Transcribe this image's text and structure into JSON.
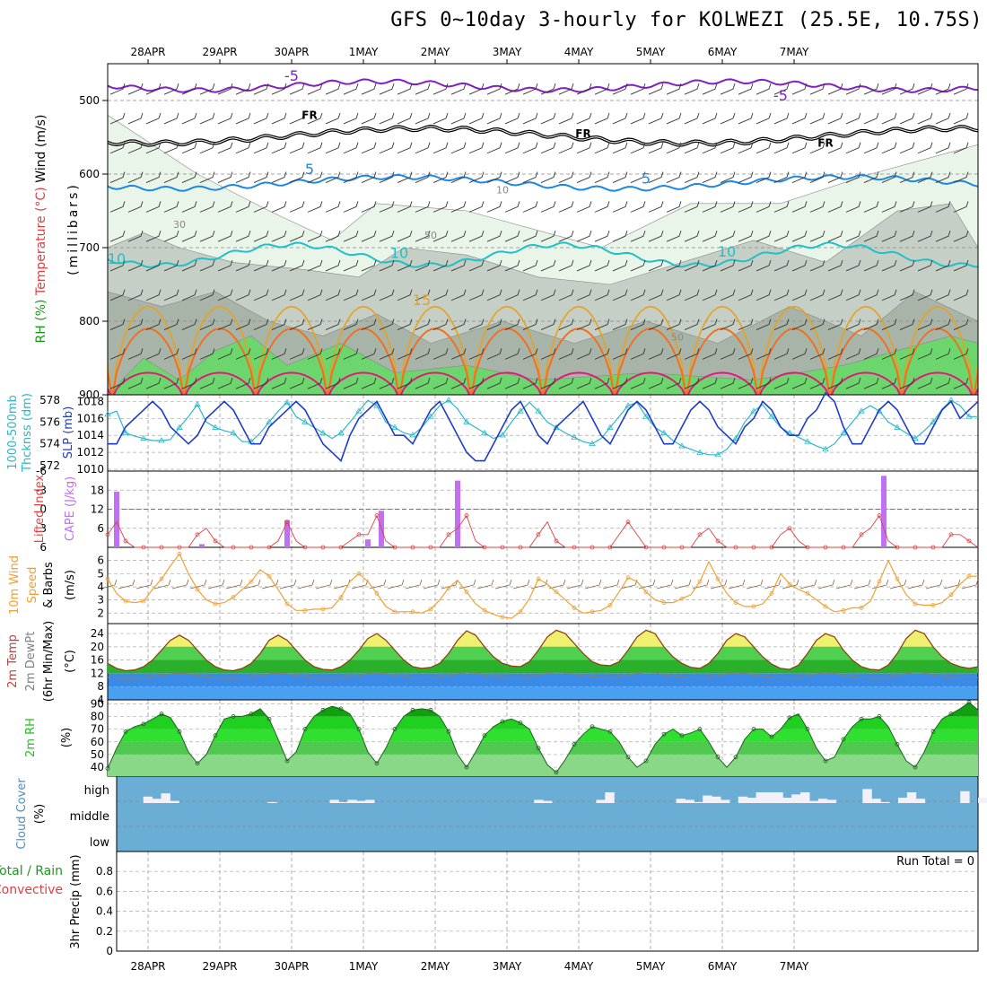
{
  "title": "GFS 0~10day 3-hourly for KOLWEZI (25.5E, 10.75S)",
  "dates": [
    "28APR",
    "29APR",
    "30APR",
    "1MAY",
    "2MAY",
    "3MAY",
    "4MAY",
    "5MAY",
    "6MAY",
    "7MAY"
  ],
  "colors": {
    "rh_light": "#e9f5e9",
    "rh_mid": "#c5cfc5",
    "rh_dark": "#a9b4a9",
    "rh_green": "#6dd56d",
    "temp_neg5": "#8020c0",
    "temp_fr": "#000000",
    "temp_5": "#1e88e0",
    "temp_10": "#20c0c8",
    "temp_15": "#e8a020",
    "temp_20": "#f07020",
    "temp_25": "#e01880",
    "slp": "#1e3cc8",
    "thickness": "#2ab8c8",
    "cape": "#c070f0",
    "lifted": "#e04040",
    "wind10": "#f0a030",
    "barb": "#806040",
    "temp2m": "#8b4513",
    "dewpt": "#808080",
    "rh2m": "#20c020",
    "cloud_bg": "#6aaed6",
    "cloud_fill": "#f4f0f8"
  },
  "chart_data": [
    {
      "panel": "upper-air",
      "type": "heatmap",
      "ylabel_parts": [
        "Wind (m/s)",
        "Temperature (°C)",
        "RH (%)"
      ],
      "yaxis_label": "(millibars)",
      "y_ticks": [
        500,
        600,
        700,
        800,
        900
      ],
      "ylim": [
        900,
        450
      ],
      "isotherm_labels": [
        {
          "text": "-5",
          "t": 20.5,
          "p": 473
        },
        {
          "text": "-5",
          "t": 75,
          "p": 500
        },
        {
          "text": "FR",
          "t": 22.5,
          "p": 525
        },
        {
          "text": "FR",
          "t": 53,
          "p": 550
        },
        {
          "text": "FR",
          "t": 80,
          "p": 563
        },
        {
          "text": "5",
          "t": 22.5,
          "p": 600
        },
        {
          "text": "5",
          "t": 60,
          "p": 613
        },
        {
          "text": "10",
          "t": 1,
          "p": 722
        },
        {
          "text": "10",
          "t": 32.5,
          "p": 714
        },
        {
          "text": "10",
          "t": 69,
          "p": 712
        },
        {
          "text": "15",
          "t": 35,
          "p": 778
        }
      ],
      "rh_labels": [
        {
          "text": "30",
          "t": 8,
          "p": 673
        },
        {
          "text": "50",
          "t": 36,
          "p": 688
        },
        {
          "text": "10",
          "t": 44,
          "p": 626
        },
        {
          "text": "50",
          "t": 63.5,
          "p": 826
        }
      ]
    },
    {
      "panel": "thickness-slp",
      "type": "line",
      "ylabel_left": "1000-500mb Thcknss (dm)",
      "ylabel_right": "SLP (mb)",
      "left_ticks": [
        572,
        574,
        576,
        578
      ],
      "right_ticks": [
        1010,
        1012,
        1014,
        1016,
        1018
      ],
      "left_ylim": [
        571.5,
        578.5
      ],
      "right_ylim": [
        1010,
        1019
      ],
      "slp_name": "SLP",
      "thickness_name": "1000-500mb Thcknss",
      "slp": [
        1013,
        1013,
        1015,
        1016,
        1017,
        1018,
        1017,
        1015,
        1014,
        1013,
        1014,
        1016,
        1017,
        1018,
        1017,
        1015,
        1013,
        1013,
        1015,
        1016,
        1017,
        1018,
        1017,
        1015,
        1013,
        1012,
        1011,
        1014,
        1016,
        1017,
        1018,
        1016,
        1014,
        1014,
        1013,
        1015,
        1017,
        1018,
        1016,
        1014,
        1012,
        1011,
        1011,
        1013,
        1015,
        1017,
        1018,
        1016,
        1014,
        1013,
        1015,
        1016,
        1017,
        1018,
        1016,
        1014,
        1013,
        1015,
        1017,
        1018,
        1017,
        1015,
        1013,
        1013,
        1015,
        1017,
        1018,
        1017,
        1015,
        1014,
        1013,
        1015,
        1016,
        1018,
        1017,
        1015,
        1014,
        1014,
        1016,
        1017,
        1019,
        1018,
        1015,
        1013,
        1013,
        1015,
        1017,
        1018,
        1017,
        1015,
        1013,
        1013,
        1015,
        1017,
        1018,
        1016,
        1017,
        1018
      ],
      "thickness": [
        576.7,
        577,
        575,
        574.7,
        574.5,
        574.3,
        574.3,
        574.4,
        575.5,
        576.5,
        577.6,
        576,
        575.5,
        575.2,
        575,
        574.2,
        574.2,
        575,
        576,
        577,
        577.8,
        576.5,
        576,
        575.5,
        575,
        574.5,
        575,
        576,
        577,
        578,
        577.5,
        576,
        575.5,
        575,
        574.8,
        575.5,
        576.5,
        577.5,
        578,
        577.2,
        576,
        575.5,
        575,
        574.5,
        574.8,
        576,
        577,
        577.8,
        577,
        576,
        575.5,
        575,
        574.6,
        574.2,
        574,
        574.5,
        575.5,
        576.5,
        577.5,
        577.8,
        576.5,
        575.5,
        575,
        574.3,
        573.8,
        573.5,
        573.2,
        573,
        573,
        573.5,
        574.5,
        576,
        577,
        577.6,
        576.5,
        575.5,
        575,
        574.6,
        574.2,
        573.8,
        573.5,
        574,
        575,
        576,
        577,
        577.5,
        577,
        576,
        575.5,
        575,
        574.5,
        575.2,
        576,
        577.2,
        578,
        577.5,
        576.5,
        576.5
      ]
    },
    {
      "panel": "cape-li",
      "type": "bar",
      "ylabel_left": "Lifted Index",
      "ylabel_right": "CAPE (J/kg)",
      "left_ticks": [
        -6,
        -3,
        0,
        3,
        6
      ],
      "right_ticks": [
        6,
        12,
        18
      ],
      "cape_ylim": [
        0,
        24
      ],
      "cape_bars": [
        {
          "t": 1,
          "v": 17.5
        },
        {
          "t": 10.5,
          "v": 1
        },
        {
          "t": 20,
          "v": 8.5
        },
        {
          "t": 29,
          "v": 2.5
        },
        {
          "t": 30.5,
          "v": 11.5
        },
        {
          "t": 39,
          "v": 21
        },
        {
          "t": 86.5,
          "v": 22.5
        }
      ],
      "lifted_index": [
        4,
        2,
        5,
        7,
        8,
        9,
        9,
        9,
        8,
        6,
        4,
        3,
        5,
        8,
        9,
        9,
        9,
        8,
        6,
        5,
        2,
        5,
        8,
        9,
        9,
        9,
        8,
        5,
        4,
        4,
        1,
        5,
        8,
        9,
        9,
        9,
        8,
        6,
        4,
        3,
        1,
        5,
        8,
        9,
        9,
        9,
        8,
        6,
        4,
        2,
        5,
        8,
        9,
        9,
        9,
        8,
        6,
        4,
        2,
        4,
        8,
        9,
        9,
        9,
        8,
        6,
        4,
        3,
        5,
        8,
        9,
        9,
        9,
        8,
        6,
        4,
        3,
        5,
        8,
        9,
        9,
        9,
        8,
        6,
        4,
        3,
        1,
        5,
        8,
        9,
        9,
        9,
        8,
        6,
        4,
        4,
        5,
        8
      ]
    },
    {
      "panel": "wind10m",
      "type": "line",
      "ylabel": "10m Wind Speed & Barbs (m/s)",
      "y_ticks": [
        2,
        3,
        4,
        5,
        6
      ],
      "ylim": [
        1.2,
        7
      ],
      "speed": [
        4.6,
        3.5,
        2.9,
        2.8,
        2.9,
        3.8,
        4.6,
        5.6,
        6.5,
        5,
        3.8,
        3,
        2.7,
        2.8,
        3.2,
        3.8,
        4.4,
        5.3,
        4.8,
        3.8,
        2.7,
        2.2,
        2.2,
        2.3,
        2.3,
        2.4,
        3.2,
        4.4,
        5,
        4.4,
        3.5,
        2.5,
        2.1,
        2.1,
        2.1,
        2,
        2.3,
        3,
        3.9,
        4.5,
        3.6,
        2.7,
        2.2,
        1.9,
        1.7,
        1.6,
        2.1,
        3.1,
        4.6,
        4.2,
        3.6,
        3,
        2.4,
        2,
        2.1,
        2.2,
        2.6,
        3.6,
        4.7,
        4.4,
        3.6,
        3,
        2.8,
        2.8,
        3.1,
        3.4,
        4.4,
        5.9,
        4.6,
        3.5,
        2.8,
        2.5,
        2.5,
        2.7,
        3.5,
        5,
        4.2,
        3.8,
        3.5,
        3,
        2.5,
        2.1,
        2.2,
        2.4,
        2.4,
        2.9,
        4.4,
        6,
        4.6,
        3.4,
        2.7,
        2.6,
        2.6,
        2.8,
        3.4,
        4.2,
        4.8,
        4.8
      ]
    },
    {
      "panel": "temp2m",
      "type": "area",
      "ylabel": "2m Temp 2m DewPt (6hr Min/Max) (°C)",
      "y_ticks": [
        4,
        8,
        12,
        16,
        20,
        24
      ],
      "ylim": [
        4,
        27
      ],
      "temp": [
        15,
        13.5,
        12.8,
        13,
        14,
        16,
        19,
        22,
        23.5,
        22,
        19,
        16,
        14,
        13,
        12.8,
        13.5,
        15,
        18,
        22,
        23.5,
        22,
        19,
        16,
        14,
        13.2,
        13,
        14,
        16,
        19,
        22.5,
        24,
        22,
        19,
        16,
        14,
        13.5,
        13.8,
        15,
        18,
        22,
        24.8,
        23.5,
        20,
        17,
        15,
        14.2,
        14,
        15.5,
        19,
        23,
        25,
        24,
        21,
        18,
        15.5,
        14.5,
        14.3,
        15.5,
        19,
        23,
        25,
        24,
        20,
        17,
        15,
        13.8,
        13.5,
        15,
        18,
        22,
        24,
        23,
        20,
        17,
        14.8,
        13.5,
        13.2,
        14.5,
        18,
        22,
        24,
        23,
        19,
        16,
        14,
        13.2,
        13,
        14.5,
        18,
        22.5,
        25,
        24,
        20,
        17,
        15,
        14,
        13.5,
        14
      ]
    },
    {
      "panel": "rh2m",
      "type": "area",
      "ylabel": "2m RH (%)",
      "y_ticks": [
        40,
        50,
        60,
        70,
        80,
        90
      ],
      "ylim": [
        33,
        93
      ],
      "rh": [
        39,
        55,
        68,
        72,
        74,
        78,
        82,
        79,
        68,
        52,
        43,
        50,
        65,
        78,
        80,
        80,
        82,
        86,
        78,
        62,
        45,
        52,
        70,
        80,
        85,
        88,
        86,
        82,
        70,
        52,
        43,
        55,
        70,
        80,
        85,
        86,
        85,
        80,
        68,
        50,
        40,
        52,
        65,
        72,
        76,
        78,
        75,
        70,
        55,
        42,
        36,
        46,
        58,
        66,
        72,
        70,
        68,
        60,
        48,
        40,
        45,
        58,
        66,
        70,
        65,
        67,
        70,
        60,
        48,
        40,
        48,
        62,
        70,
        70,
        64,
        70,
        79,
        82,
        70,
        55,
        45,
        48,
        62,
        72,
        78,
        78,
        80,
        72,
        58,
        45,
        40,
        52,
        68,
        78,
        82,
        86,
        91,
        85
      ]
    },
    {
      "panel": "cloud",
      "type": "bar",
      "ylabel": "Cloud Cover (%)",
      "y_ticks": [
        "high",
        "middle",
        "low"
      ],
      "high_cloud": [
        0,
        0,
        0,
        6,
        4,
        9,
        2,
        0,
        0,
        0,
        0,
        0,
        0,
        0,
        0,
        0,
        0,
        1,
        0,
        0,
        0,
        0,
        0,
        0,
        3,
        1,
        3,
        2,
        3,
        0,
        0,
        0,
        0,
        0,
        0,
        0,
        0,
        0,
        0,
        0,
        0,
        0,
        0,
        0,
        0,
        0,
        0,
        3,
        2,
        0,
        0,
        0,
        0,
        0,
        3,
        10,
        0,
        0,
        0,
        0,
        0,
        0,
        0,
        4,
        3,
        1,
        7,
        6,
        3,
        0,
        6,
        5,
        10,
        10,
        10,
        5,
        8,
        10,
        2,
        4,
        3,
        0,
        0,
        0,
        13,
        4,
        1,
        0,
        5,
        10,
        4,
        0,
        0,
        0,
        0,
        11,
        0,
        5
      ]
    },
    {
      "panel": "precip",
      "type": "bar",
      "ylabel_parts": [
        "Total / Rain",
        "Convective",
        "3hr Precip (mm)"
      ],
      "y_ticks": [
        0,
        0.2,
        0.4,
        0.6,
        0.8
      ],
      "ylim": [
        0,
        1
      ],
      "run_total": "Run Total = 0",
      "values": []
    }
  ]
}
